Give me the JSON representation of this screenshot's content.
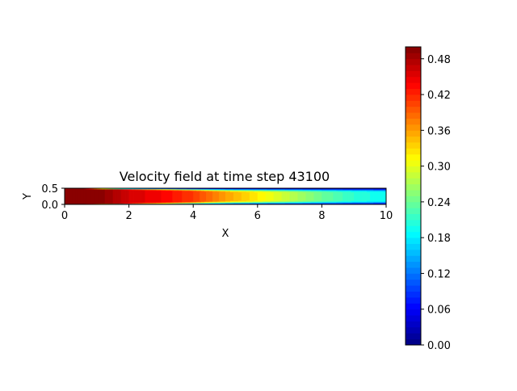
{
  "chart_data": {
    "type": "heatmap",
    "title": "Velocity field at time step 43100",
    "xlabel": "X",
    "ylabel": "Y",
    "xlim": [
      0,
      10
    ],
    "ylim": [
      0,
      0.5
    ],
    "x_ticks": [
      "0",
      "2",
      "4",
      "6",
      "8",
      "10"
    ],
    "y_ticks": [
      "0.0",
      "0.5"
    ],
    "x_tick_values": [
      0,
      2,
      4,
      6,
      8,
      10
    ],
    "y_tick_values": [
      0,
      0.5
    ],
    "colormap": "jet",
    "colorbar": {
      "range": [
        0,
        0.5
      ],
      "ticks": [
        "0.00",
        "0.06",
        "0.12",
        "0.18",
        "0.24",
        "0.30",
        "0.36",
        "0.42",
        "0.48"
      ],
      "tick_values": [
        0,
        0.06,
        0.12,
        0.18,
        0.24,
        0.3,
        0.36,
        0.42,
        0.48
      ],
      "levels": 50
    },
    "field": {
      "description_units": "velocity magnitude",
      "inlet_value": 0.5,
      "centerline_profile": [
        {
          "x": 0,
          "v": 0.5
        },
        {
          "x": 1,
          "v": 0.5
        },
        {
          "x": 2,
          "v": 0.46
        },
        {
          "x": 3,
          "v": 0.44
        },
        {
          "x": 4,
          "v": 0.41
        },
        {
          "x": 5,
          "v": 0.36
        },
        {
          "x": 6,
          "v": 0.32
        },
        {
          "x": 7,
          "v": 0.28
        },
        {
          "x": 8,
          "v": 0.24
        },
        {
          "x": 9,
          "v": 0.21
        },
        {
          "x": 10,
          "v": 0.19
        }
      ],
      "wall_value": 0.0
    }
  }
}
